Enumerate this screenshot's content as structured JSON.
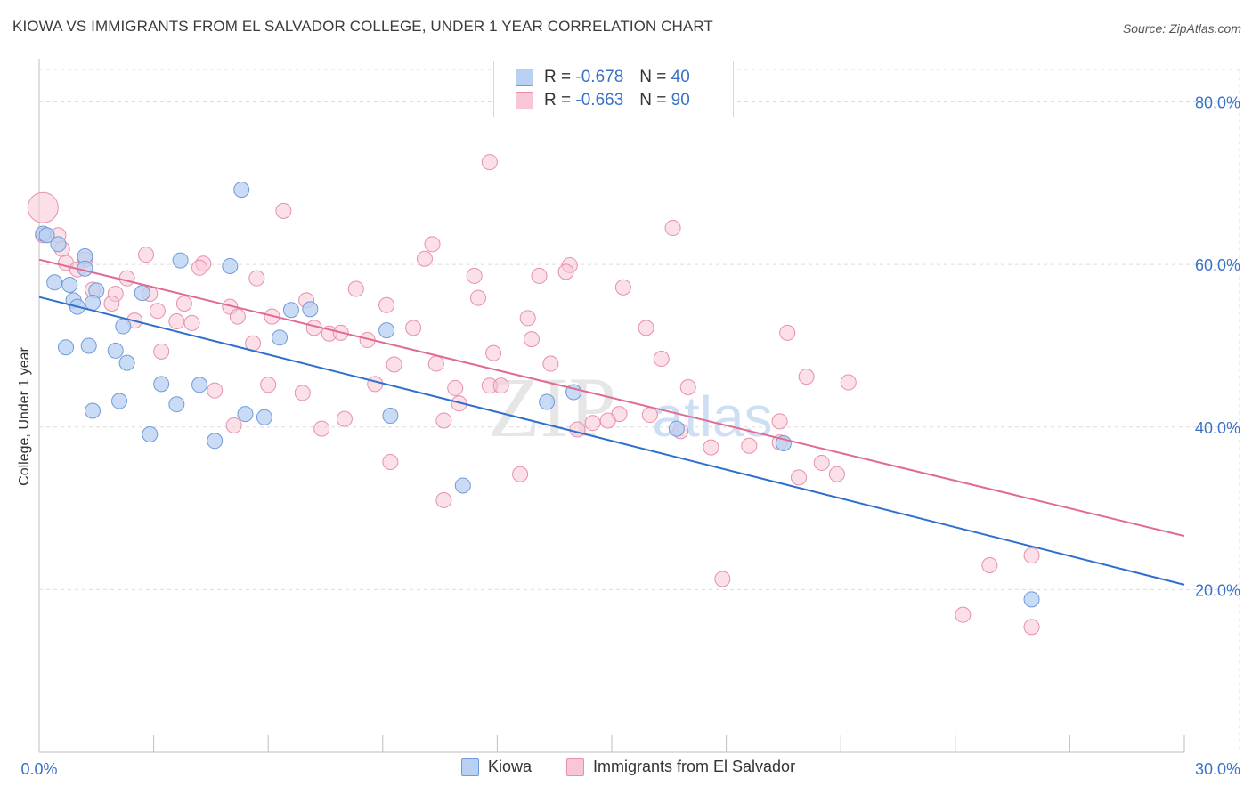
{
  "header": {
    "title": "KIOWA VS IMMIGRANTS FROM EL SALVADOR COLLEGE, UNDER 1 YEAR CORRELATION CHART",
    "source": "Source: ZipAtlas.com"
  },
  "watermark": {
    "zip": "ZIP",
    "atlas": "atlas"
  },
  "legend": {
    "r_label": "R =",
    "n_label": "N =",
    "rows": [
      {
        "r": "-0.678",
        "n": "40"
      },
      {
        "r": "-0.663",
        "n": "90"
      }
    ]
  },
  "colors": {
    "kiowa_fill": "#b8d0f2",
    "kiowa_stroke": "#6f9bd8",
    "kiowa_line": "#2f6fcc",
    "salvador_fill": "#f9c6d6",
    "salvador_stroke": "#e68fae",
    "salvador_line": "#e06a94",
    "tick_label": "#3a72c6",
    "grid": "#dcdcdc"
  },
  "chart_data": {
    "type": "scatter",
    "title": "KIOWA VS IMMIGRANTS FROM EL SALVADOR COLLEGE, UNDER 1 YEAR CORRELATION CHART",
    "xlabel": "",
    "ylabel": "College, Under 1 year",
    "xlim": [
      0,
      30
    ],
    "ylim": [
      0,
      84
    ],
    "x_tick_labels": [
      "0.0%",
      "30.0%"
    ],
    "y_ticks": [
      20,
      40,
      60,
      80
    ],
    "y_tick_labels": [
      "20.0%",
      "40.0%",
      "60.0%",
      "80.0%"
    ],
    "grid": true,
    "legend_position": "top-center",
    "series": [
      {
        "name": "Kiowa",
        "color": "#6f9bd8",
        "trend": {
          "x": [
            0,
            30
          ],
          "y": [
            56.0,
            20.6
          ]
        },
        "points": [
          {
            "x": 0.1,
            "y": 63.8
          },
          {
            "x": 0.2,
            "y": 63.6
          },
          {
            "x": 0.5,
            "y": 62.5
          },
          {
            "x": 1.2,
            "y": 61.0
          },
          {
            "x": 3.7,
            "y": 60.5
          },
          {
            "x": 5.0,
            "y": 59.8
          },
          {
            "x": 1.2,
            "y": 59.5
          },
          {
            "x": 0.4,
            "y": 57.8
          },
          {
            "x": 0.8,
            "y": 57.5
          },
          {
            "x": 1.5,
            "y": 56.8
          },
          {
            "x": 2.7,
            "y": 56.5
          },
          {
            "x": 0.9,
            "y": 55.6
          },
          {
            "x": 1.4,
            "y": 55.3
          },
          {
            "x": 1.0,
            "y": 54.8
          },
          {
            "x": 6.6,
            "y": 54.4
          },
          {
            "x": 7.1,
            "y": 54.5
          },
          {
            "x": 2.2,
            "y": 52.4
          },
          {
            "x": 9.1,
            "y": 51.9
          },
          {
            "x": 6.3,
            "y": 51.0
          },
          {
            "x": 0.7,
            "y": 49.8
          },
          {
            "x": 1.3,
            "y": 50.0
          },
          {
            "x": 2.0,
            "y": 49.4
          },
          {
            "x": 2.3,
            "y": 47.9
          },
          {
            "x": 3.2,
            "y": 45.3
          },
          {
            "x": 4.2,
            "y": 45.2
          },
          {
            "x": 14.0,
            "y": 44.3
          },
          {
            "x": 2.1,
            "y": 43.2
          },
          {
            "x": 3.6,
            "y": 42.8
          },
          {
            "x": 13.3,
            "y": 43.1
          },
          {
            "x": 1.4,
            "y": 42.0
          },
          {
            "x": 5.4,
            "y": 41.6
          },
          {
            "x": 5.9,
            "y": 41.2
          },
          {
            "x": 9.2,
            "y": 41.4
          },
          {
            "x": 2.9,
            "y": 39.1
          },
          {
            "x": 16.7,
            "y": 39.8
          },
          {
            "x": 4.6,
            "y": 38.3
          },
          {
            "x": 19.5,
            "y": 38.0
          },
          {
            "x": 5.3,
            "y": 69.2
          },
          {
            "x": 11.1,
            "y": 32.8
          },
          {
            "x": 26.0,
            "y": 18.8
          }
        ]
      },
      {
        "name": "Immigrants from El Salvador",
        "color": "#e68fae",
        "trend": {
          "x": [
            0,
            30
          ],
          "y": [
            60.6,
            26.6
          ]
        },
        "points": [
          {
            "x": 0.1,
            "y": 67.0,
            "big": true
          },
          {
            "x": 11.8,
            "y": 72.6
          },
          {
            "x": 6.4,
            "y": 66.6
          },
          {
            "x": 16.6,
            "y": 64.5
          },
          {
            "x": 0.5,
            "y": 63.6
          },
          {
            "x": 10.3,
            "y": 62.5
          },
          {
            "x": 0.6,
            "y": 61.9
          },
          {
            "x": 2.8,
            "y": 61.2
          },
          {
            "x": 10.1,
            "y": 60.7
          },
          {
            "x": 1.2,
            "y": 60.6
          },
          {
            "x": 0.7,
            "y": 60.2
          },
          {
            "x": 4.3,
            "y": 60.1
          },
          {
            "x": 4.2,
            "y": 59.6
          },
          {
            "x": 13.9,
            "y": 59.9
          },
          {
            "x": 1.0,
            "y": 59.4
          },
          {
            "x": 13.8,
            "y": 59.1
          },
          {
            "x": 13.1,
            "y": 58.6
          },
          {
            "x": 11.4,
            "y": 58.6
          },
          {
            "x": 5.7,
            "y": 58.3
          },
          {
            "x": 2.3,
            "y": 58.3
          },
          {
            "x": 8.3,
            "y": 57.0
          },
          {
            "x": 15.3,
            "y": 57.2
          },
          {
            "x": 1.4,
            "y": 56.9
          },
          {
            "x": 2.0,
            "y": 56.4
          },
          {
            "x": 2.9,
            "y": 56.4
          },
          {
            "x": 11.5,
            "y": 55.9
          },
          {
            "x": 7.0,
            "y": 55.6
          },
          {
            "x": 3.8,
            "y": 55.2
          },
          {
            "x": 1.9,
            "y": 55.2
          },
          {
            "x": 9.1,
            "y": 55.0
          },
          {
            "x": 5.0,
            "y": 54.8
          },
          {
            "x": 3.1,
            "y": 54.3
          },
          {
            "x": 5.2,
            "y": 53.6
          },
          {
            "x": 6.1,
            "y": 53.6
          },
          {
            "x": 12.8,
            "y": 53.4
          },
          {
            "x": 2.5,
            "y": 53.1
          },
          {
            "x": 3.6,
            "y": 53.0
          },
          {
            "x": 4.0,
            "y": 52.8
          },
          {
            "x": 7.2,
            "y": 52.2
          },
          {
            "x": 9.8,
            "y": 52.2
          },
          {
            "x": 15.9,
            "y": 52.2
          },
          {
            "x": 19.6,
            "y": 51.6
          },
          {
            "x": 7.6,
            "y": 51.5
          },
          {
            "x": 7.9,
            "y": 51.6
          },
          {
            "x": 8.6,
            "y": 50.7
          },
          {
            "x": 12.9,
            "y": 50.8
          },
          {
            "x": 5.6,
            "y": 50.3
          },
          {
            "x": 3.2,
            "y": 49.3
          },
          {
            "x": 11.9,
            "y": 49.1
          },
          {
            "x": 16.3,
            "y": 48.4
          },
          {
            "x": 10.4,
            "y": 47.8
          },
          {
            "x": 9.3,
            "y": 47.7
          },
          {
            "x": 13.4,
            "y": 47.8
          },
          {
            "x": 20.1,
            "y": 46.2
          },
          {
            "x": 21.2,
            "y": 45.5
          },
          {
            "x": 8.8,
            "y": 45.3
          },
          {
            "x": 6.0,
            "y": 45.2
          },
          {
            "x": 11.8,
            "y": 45.1
          },
          {
            "x": 12.1,
            "y": 45.1
          },
          {
            "x": 10.9,
            "y": 44.8
          },
          {
            "x": 17.0,
            "y": 44.9
          },
          {
            "x": 4.6,
            "y": 44.5
          },
          {
            "x": 6.9,
            "y": 44.2
          },
          {
            "x": 11.0,
            "y": 42.9
          },
          {
            "x": 15.2,
            "y": 41.6
          },
          {
            "x": 16.0,
            "y": 41.5
          },
          {
            "x": 14.9,
            "y": 40.8
          },
          {
            "x": 10.6,
            "y": 40.8
          },
          {
            "x": 8.0,
            "y": 41.0
          },
          {
            "x": 19.4,
            "y": 40.7
          },
          {
            "x": 5.1,
            "y": 40.2
          },
          {
            "x": 14.5,
            "y": 40.5
          },
          {
            "x": 14.1,
            "y": 39.7
          },
          {
            "x": 7.4,
            "y": 39.8
          },
          {
            "x": 16.8,
            "y": 39.5
          },
          {
            "x": 17.6,
            "y": 37.5
          },
          {
            "x": 18.6,
            "y": 37.7
          },
          {
            "x": 20.5,
            "y": 35.6
          },
          {
            "x": 9.2,
            "y": 35.7
          },
          {
            "x": 20.9,
            "y": 34.2
          },
          {
            "x": 12.6,
            "y": 34.2
          },
          {
            "x": 19.9,
            "y": 33.8
          },
          {
            "x": 10.6,
            "y": 31.0
          },
          {
            "x": 26.0,
            "y": 24.2
          },
          {
            "x": 24.9,
            "y": 23.0
          },
          {
            "x": 17.9,
            "y": 21.3
          },
          {
            "x": 24.2,
            "y": 16.9
          },
          {
            "x": 26.0,
            "y": 15.4
          },
          {
            "x": 0.1,
            "y": 63.6
          },
          {
            "x": 19.4,
            "y": 38.1
          }
        ]
      }
    ]
  },
  "bottom_legend": [
    {
      "label": "Kiowa"
    },
    {
      "label": "Immigrants from El Salvador"
    }
  ]
}
